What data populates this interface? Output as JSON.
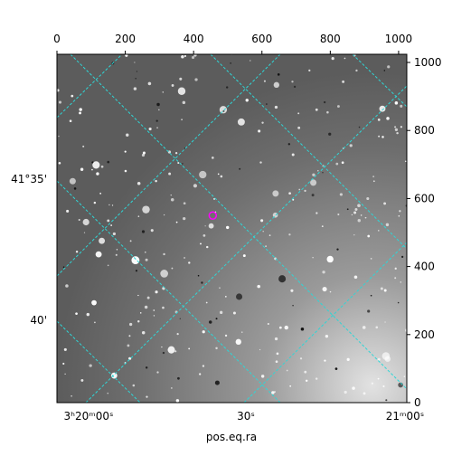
{
  "chart_data": {
    "type": "scatter",
    "x_label": "pos.eq.ra",
    "xlim": [
      0,
      1024
    ],
    "ylim": [
      0,
      1024
    ],
    "xticks": [
      0,
      200,
      400,
      600,
      800,
      1000
    ],
    "yticks": [
      0,
      200,
      400,
      600,
      800,
      1000
    ],
    "ra_labels": [
      "3ʰ20ᵐ00ˢ",
      "30ˢ",
      "21ᵐ00ˢ"
    ],
    "dec_labels": [
      "41°35'",
      "40'"
    ],
    "series": [
      {
        "color": "#ff00ff",
        "x": [
          456
        ],
        "values": [
          550
        ]
      }
    ]
  }
}
